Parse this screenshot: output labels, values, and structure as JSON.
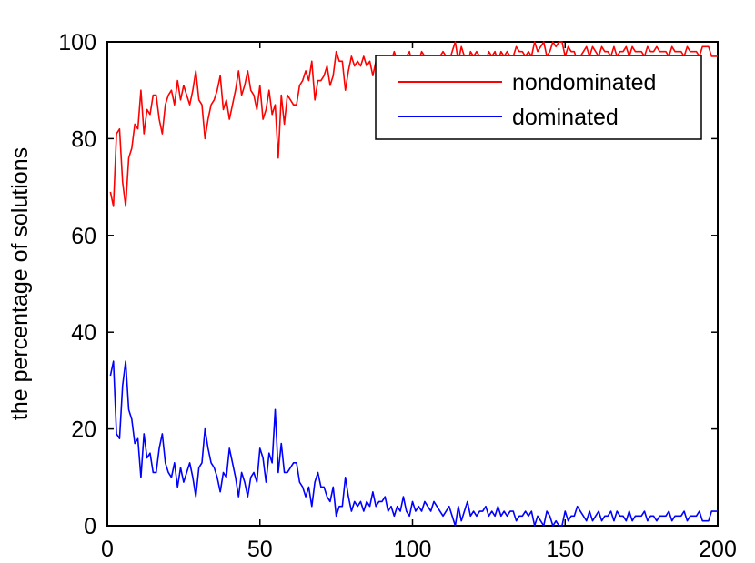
{
  "chart_data": {
    "type": "line",
    "title": "",
    "xlabel": "",
    "ylabel": "the percentage of solutions",
    "xlim": [
      0,
      200
    ],
    "ylim": [
      0,
      100
    ],
    "xticks": [
      0,
      50,
      100,
      150,
      200
    ],
    "yticks": [
      0,
      20,
      40,
      60,
      80,
      100
    ],
    "grid": false,
    "legend_position": "top-right",
    "series": [
      {
        "name": "nondominated",
        "color": "#ff0000",
        "x": [
          1,
          2,
          3,
          4,
          5,
          6,
          7,
          8,
          9,
          10,
          11,
          12,
          13,
          14,
          15,
          16,
          17,
          18,
          19,
          20,
          21,
          22,
          23,
          24,
          25,
          26,
          27,
          28,
          29,
          30,
          31,
          32,
          33,
          34,
          35,
          36,
          37,
          38,
          39,
          40,
          41,
          42,
          43,
          44,
          45,
          46,
          47,
          48,
          49,
          50,
          51,
          52,
          53,
          54,
          55,
          56,
          57,
          58,
          59,
          60,
          61,
          62,
          63,
          64,
          65,
          66,
          67,
          68,
          69,
          70,
          71,
          72,
          73,
          74,
          75,
          76,
          77,
          78,
          79,
          80,
          81,
          82,
          83,
          84,
          85,
          86,
          87,
          88,
          89,
          90,
          91,
          92,
          93,
          94,
          95,
          96,
          97,
          98,
          99,
          100,
          101,
          102,
          103,
          104,
          105,
          106,
          107,
          108,
          109,
          110,
          111,
          112,
          113,
          114,
          115,
          116,
          117,
          118,
          119,
          120,
          121,
          122,
          123,
          124,
          125,
          126,
          127,
          128,
          129,
          130,
          131,
          132,
          133,
          134,
          135,
          136,
          137,
          138,
          139,
          140,
          141,
          142,
          143,
          144,
          145,
          146,
          147,
          148,
          149,
          150,
          151,
          152,
          153,
          154,
          155,
          156,
          157,
          158,
          159,
          160,
          161,
          162,
          163,
          164,
          165,
          166,
          167,
          168,
          169,
          170,
          171,
          172,
          173,
          174,
          175,
          176,
          177,
          178,
          179,
          180,
          181,
          182,
          183,
          184,
          185,
          186,
          187,
          188,
          189,
          190,
          191,
          192,
          193,
          194,
          195,
          196,
          197,
          198,
          199,
          200
        ],
        "values": [
          69,
          66,
          81,
          82,
          71,
          66,
          76,
          78,
          83,
          82,
          90,
          81,
          86,
          85,
          89,
          89,
          84,
          81,
          87,
          89,
          90,
          87,
          92,
          88,
          91,
          89,
          87,
          90,
          94,
          88,
          87,
          80,
          84,
          87,
          88,
          90,
          93,
          86,
          88,
          84,
          87,
          90,
          94,
          89,
          91,
          94,
          90,
          89,
          86,
          91,
          84,
          86,
          90,
          85,
          87,
          76,
          89,
          83,
          89,
          88,
          87,
          87,
          91,
          92,
          94,
          92,
          96,
          88,
          92,
          92,
          93,
          95,
          91,
          93,
          98,
          96,
          96,
          90,
          94,
          97,
          95,
          96,
          95,
          97,
          95,
          96,
          93,
          96,
          95,
          95,
          94,
          97,
          96,
          98,
          96,
          97,
          96,
          97,
          98,
          95,
          97,
          96,
          98,
          97,
          96,
          97,
          95,
          96,
          97,
          98,
          97,
          96,
          98,
          100,
          96,
          99,
          97,
          95,
          98,
          97,
          98,
          97,
          97,
          96,
          98,
          97,
          98,
          96,
          98,
          97,
          98,
          97,
          97,
          99,
          98,
          98,
          97,
          98,
          97,
          100,
          98,
          99,
          100,
          97,
          98,
          100,
          99,
          100,
          100,
          97,
          99,
          98,
          98,
          96,
          97,
          98,
          99,
          97,
          99,
          98,
          97,
          99,
          98,
          98,
          97,
          99,
          97,
          98,
          98,
          99,
          97,
          99,
          98,
          98,
          98,
          97,
          99,
          98,
          98,
          99,
          98,
          98,
          98,
          97,
          99,
          98,
          98,
          98,
          97,
          99,
          98,
          98,
          98,
          97,
          99,
          99,
          99,
          97,
          97,
          97
        ]
      },
      {
        "name": "dominated",
        "color": "#0000ff",
        "x": [
          1,
          2,
          3,
          4,
          5,
          6,
          7,
          8,
          9,
          10,
          11,
          12,
          13,
          14,
          15,
          16,
          17,
          18,
          19,
          20,
          21,
          22,
          23,
          24,
          25,
          26,
          27,
          28,
          29,
          30,
          31,
          32,
          33,
          34,
          35,
          36,
          37,
          38,
          39,
          40,
          41,
          42,
          43,
          44,
          45,
          46,
          47,
          48,
          49,
          50,
          51,
          52,
          53,
          54,
          55,
          56,
          57,
          58,
          59,
          60,
          61,
          62,
          63,
          64,
          65,
          66,
          67,
          68,
          69,
          70,
          71,
          72,
          73,
          74,
          75,
          76,
          77,
          78,
          79,
          80,
          81,
          82,
          83,
          84,
          85,
          86,
          87,
          88,
          89,
          90,
          91,
          92,
          93,
          94,
          95,
          96,
          97,
          98,
          99,
          100,
          101,
          102,
          103,
          104,
          105,
          106,
          107,
          108,
          109,
          110,
          111,
          112,
          113,
          114,
          115,
          116,
          117,
          118,
          119,
          120,
          121,
          122,
          123,
          124,
          125,
          126,
          127,
          128,
          129,
          130,
          131,
          132,
          133,
          134,
          135,
          136,
          137,
          138,
          139,
          140,
          141,
          142,
          143,
          144,
          145,
          146,
          147,
          148,
          149,
          150,
          151,
          152,
          153,
          154,
          155,
          156,
          157,
          158,
          159,
          160,
          161,
          162,
          163,
          164,
          165,
          166,
          167,
          168,
          169,
          170,
          171,
          172,
          173,
          174,
          175,
          176,
          177,
          178,
          179,
          180,
          181,
          182,
          183,
          184,
          185,
          186,
          187,
          188,
          189,
          190,
          191,
          192,
          193,
          194,
          195,
          196,
          197,
          198,
          199,
          200
        ],
        "values": [
          31,
          34,
          19,
          18,
          29,
          34,
          24,
          22,
          17,
          18,
          10,
          19,
          14,
          15,
          11,
          11,
          16,
          19,
          13,
          11,
          10,
          13,
          8,
          12,
          9,
          11,
          13,
          10,
          6,
          12,
          13,
          20,
          16,
          13,
          12,
          10,
          7,
          11,
          10,
          16,
          13,
          10,
          6,
          11,
          9,
          6,
          10,
          11,
          9,
          16,
          14,
          9,
          15,
          13,
          24,
          11,
          17,
          11,
          11,
          12,
          13,
          13,
          9,
          8,
          6,
          8,
          4,
          9,
          11,
          8,
          8,
          6,
          5,
          8,
          2,
          4,
          4,
          10,
          6,
          3,
          5,
          4,
          5,
          3,
          5,
          4,
          7,
          4,
          5,
          5,
          6,
          3,
          4,
          2,
          4,
          3,
          6,
          3,
          2,
          5,
          3,
          4,
          3,
          5,
          4,
          3,
          5,
          4,
          3,
          2,
          3,
          4,
          2,
          0,
          4,
          1,
          3,
          5,
          2,
          3,
          2,
          3,
          3,
          4,
          2,
          3,
          2,
          4,
          2,
          3,
          2,
          3,
          3,
          1,
          2,
          2,
          3,
          2,
          3,
          0,
          2,
          1,
          0,
          3,
          2,
          0,
          1,
          0,
          0,
          3,
          1,
          2,
          2,
          4,
          3,
          2,
          1,
          3,
          1,
          2,
          3,
          1,
          2,
          2,
          3,
          1,
          3,
          2,
          2,
          1,
          3,
          1,
          2,
          2,
          2,
          3,
          1,
          2,
          2,
          1,
          2,
          2,
          2,
          3,
          1,
          2,
          2,
          2,
          3,
          1,
          2,
          2,
          2,
          3,
          1,
          1,
          1,
          3,
          3,
          3
        ]
      }
    ]
  }
}
